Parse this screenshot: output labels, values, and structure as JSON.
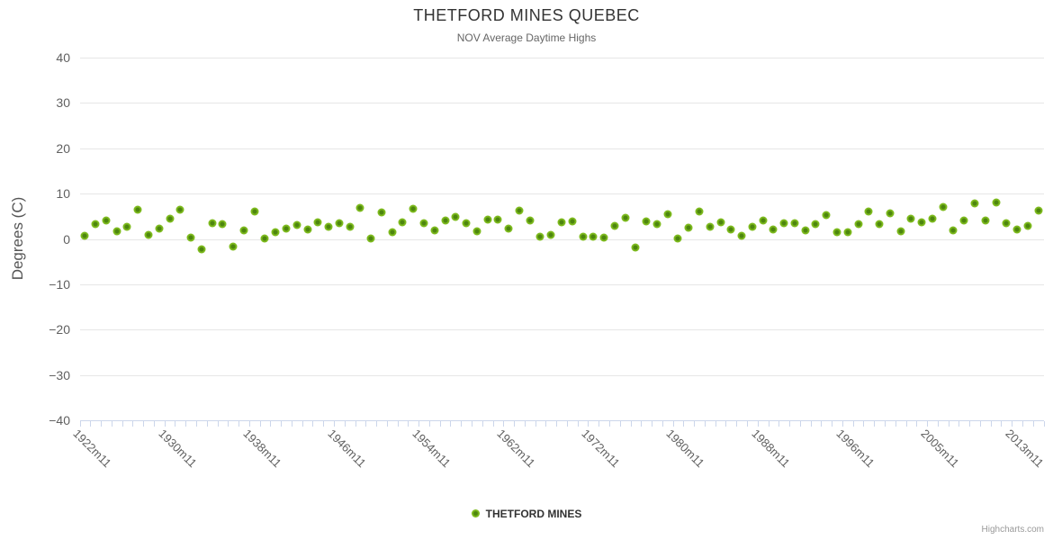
{
  "title": "THETFORD MINES QUEBEC",
  "subtitle": "NOV Average Daytime Highs",
  "legend": {
    "label": "THETFORD MINES"
  },
  "credits": "Highcharts.com",
  "y_axis": {
    "title": "Degrees (C)"
  },
  "colors": {
    "marker_outer": "#7dba1d",
    "marker_center": "#4d860e",
    "grid": "#e6e6e6",
    "axis": "#ccd6eb",
    "tick_label": "#606060"
  },
  "chart_data": {
    "type": "scatter",
    "title": "THETFORD MINES QUEBEC",
    "subtitle": "NOV Average Daytime Highs",
    "ylabel": "Degrees (C)",
    "ylim": [
      -40,
      40
    ],
    "y_ticks": [
      40,
      30,
      20,
      10,
      0,
      -10,
      -20,
      -30,
      -40
    ],
    "grid": true,
    "legend_position": "bottom",
    "x_tick_positions": [
      0,
      8,
      16,
      24,
      32,
      40,
      48,
      56,
      64,
      72,
      80,
      88
    ],
    "x_tick_labels": [
      "1922m11",
      "1930m11",
      "1938m11",
      "1946m11",
      "1954m11",
      "1962m11",
      "1972m11",
      "1980m11",
      "1988m11",
      "1996m11",
      "2005m11",
      "2013m11"
    ],
    "series": [
      {
        "name": "THETFORD MINES",
        "values": [
          0.7,
          3.3,
          4.1,
          1.7,
          2.6,
          6.4,
          0.8,
          2.3,
          4.4,
          6.4,
          0.3,
          -2.2,
          3.5,
          3.2,
          -1.7,
          1.8,
          6.0,
          0.1,
          1.4,
          2.3,
          3.1,
          2.1,
          3.6,
          2.6,
          3.4,
          2.6,
          6.9,
          0.1,
          5.9,
          1.4,
          3.6,
          6.6,
          3.4,
          1.9,
          4.1,
          4.8,
          3.5,
          1.6,
          4.3,
          4.3,
          2.2,
          6.2,
          4.0,
          0.4,
          0.8,
          3.6,
          3.9,
          0.5,
          0.5,
          0.3,
          2.8,
          4.7,
          -1.9,
          3.8,
          3.2,
          5.4,
          0.1,
          2.4,
          6.0,
          2.6,
          3.7,
          2.0,
          0.6,
          2.7,
          4.1,
          2.0,
          3.5,
          3.5,
          1.8,
          3.2,
          5.2,
          1.4,
          1.5,
          3.2,
          6.0,
          3.3,
          5.7,
          1.6,
          4.4,
          3.7,
          4.4,
          7.0,
          1.8,
          4.0,
          7.8,
          4.1,
          8.1,
          3.4,
          2.0,
          2.8,
          6.2
        ]
      }
    ]
  }
}
